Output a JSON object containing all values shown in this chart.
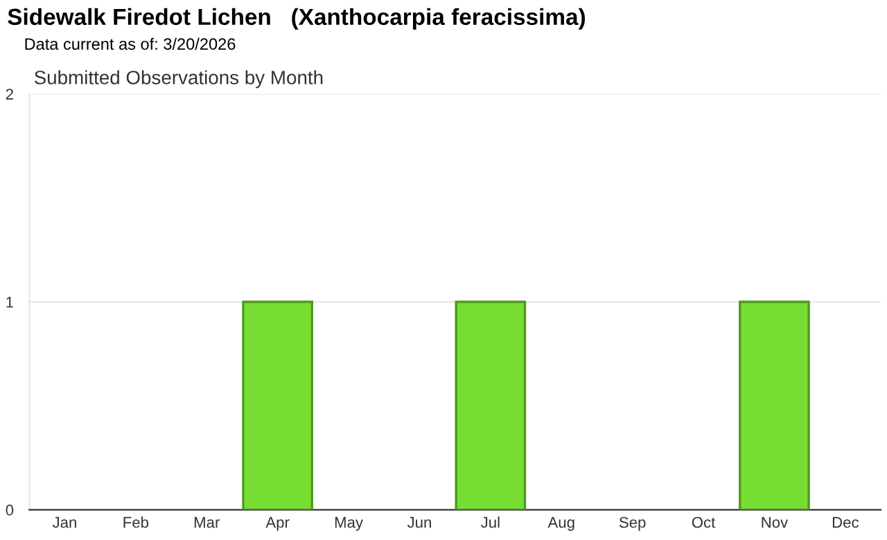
{
  "chart_data": {
    "type": "bar",
    "title": "Sidewalk Firedot Lichen   (Xanthocarpia feracissima)",
    "subtitle": "Data current as of: 3/20/2026",
    "annotations": [
      "Submitted Observations by Month"
    ],
    "categories": [
      "Jan",
      "Feb",
      "Mar",
      "Apr",
      "May",
      "Jun",
      "Jul",
      "Aug",
      "Sep",
      "Oct",
      "Nov",
      "Dec"
    ],
    "values": [
      0,
      0,
      0,
      1,
      0,
      0,
      1,
      0,
      0,
      0,
      1,
      0
    ],
    "color": "#77dd33",
    "ylim": [
      0,
      2
    ],
    "yticks": [
      0,
      1,
      2
    ],
    "grid": "y",
    "legend": false
  }
}
